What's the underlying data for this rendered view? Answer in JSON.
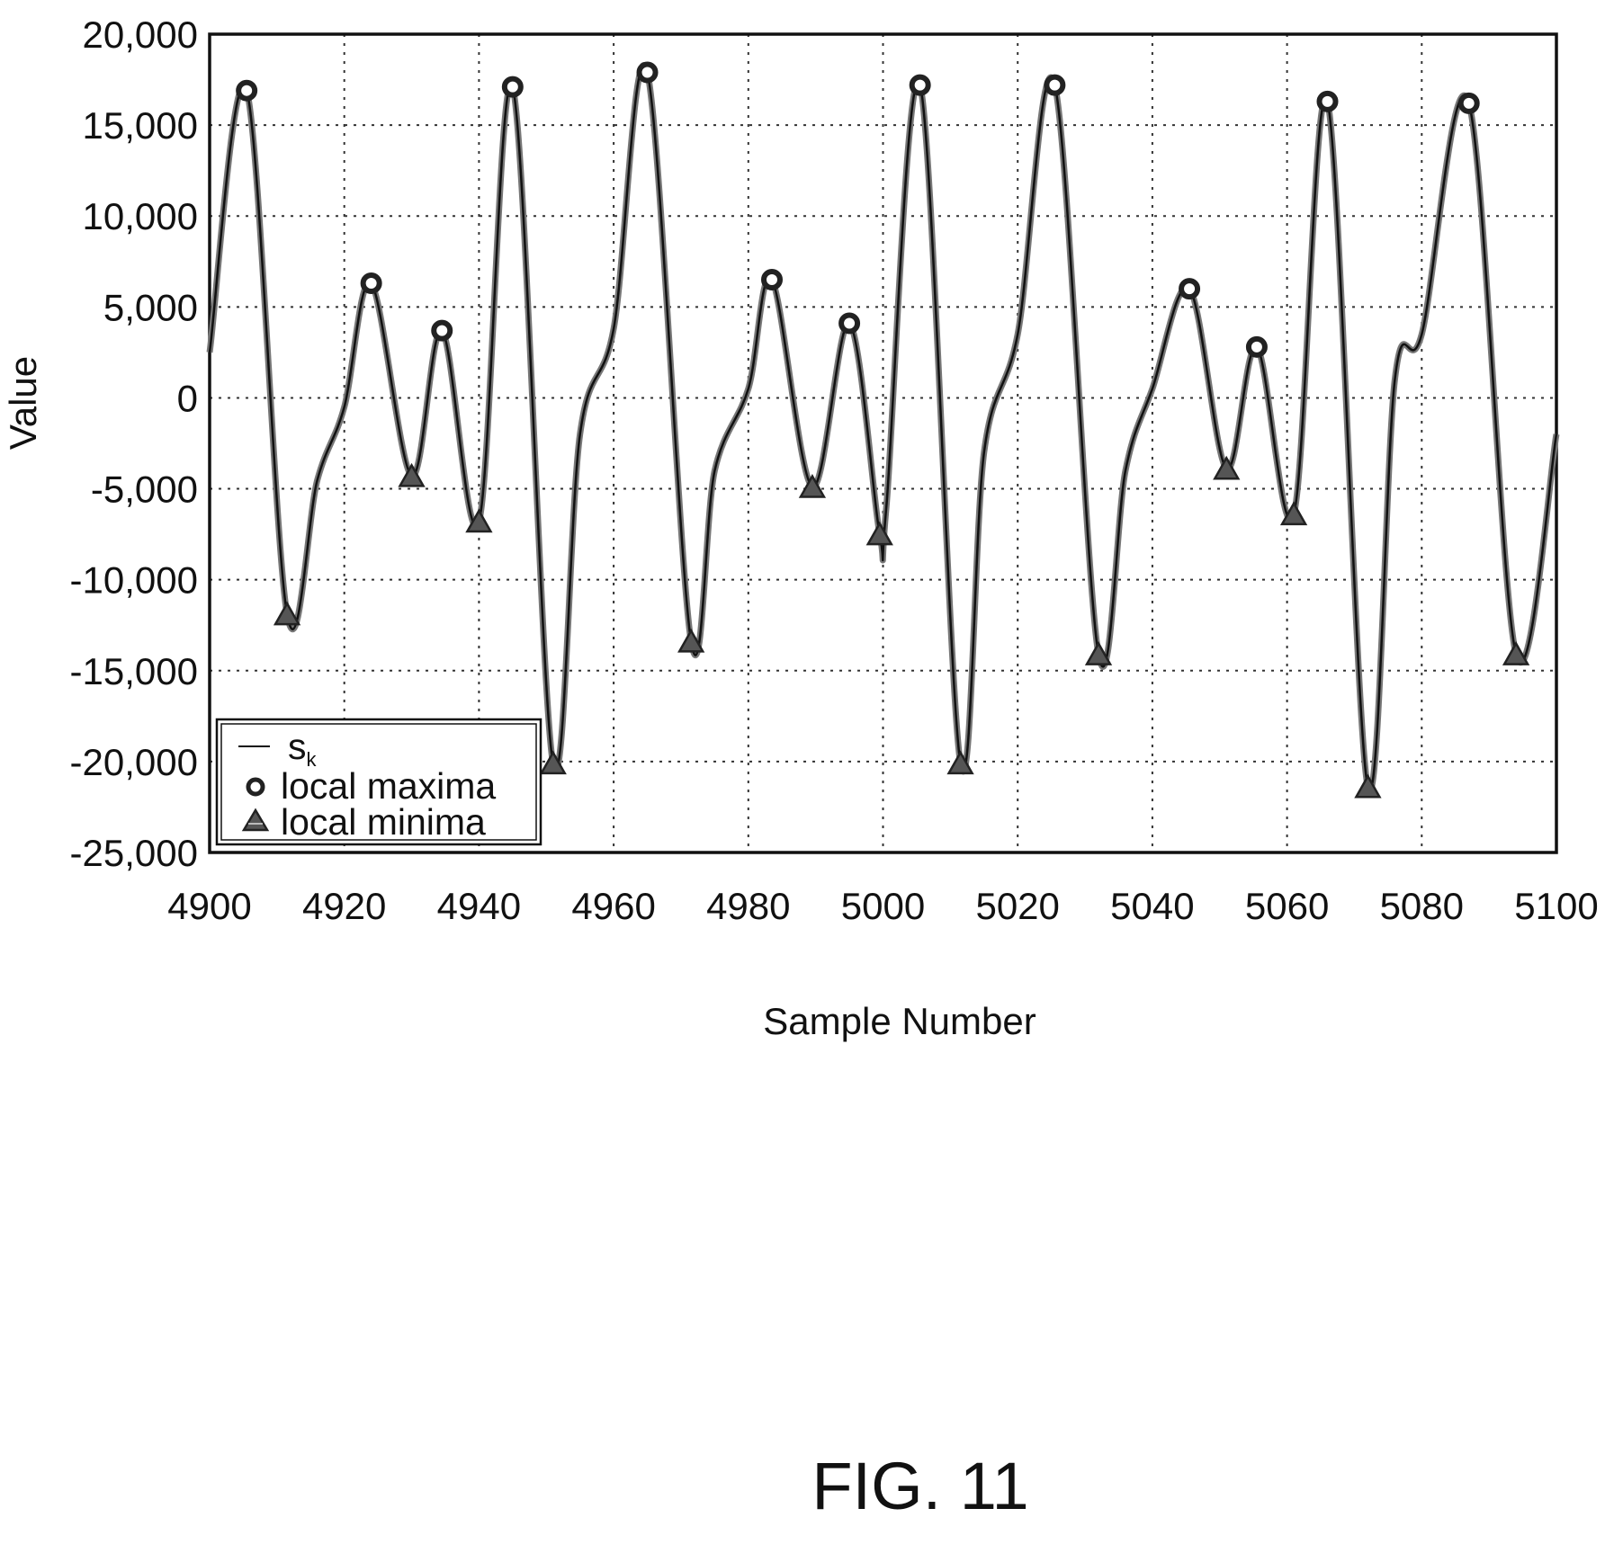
{
  "chart_data": {
    "type": "line",
    "xlabel": "Sample Number",
    "ylabel": "Value",
    "xlim": [
      4900,
      5100
    ],
    "ylim": [
      -25000,
      20000
    ],
    "x_ticks": [
      4900,
      4920,
      4940,
      4960,
      4980,
      5000,
      5020,
      5040,
      5060,
      5080,
      5100
    ],
    "y_ticks": [
      20000,
      15000,
      10000,
      5000,
      0,
      -5000,
      -10000,
      -15000,
      -20000,
      -25000
    ],
    "x_tick_labels": [
      "4900",
      "4920",
      "4940",
      "4960",
      "4980",
      "5000",
      "5020",
      "5040",
      "5060",
      "5080",
      "5100"
    ],
    "y_tick_labels": [
      "20,000",
      "15,000",
      "10,000",
      "5,000",
      "0",
      "-5,000",
      "-10,000",
      "-15,000",
      "-20,000",
      "-25,000"
    ],
    "grid": true,
    "legend_position": "bottom-left",
    "series": [
      {
        "name": "s",
        "name_subscript": "k",
        "style": "line",
        "x": [
          4900,
          4905.5,
          4911.5,
          4916,
          4920,
          4924,
          4930,
          4934.5,
          4940,
          4945,
          4951,
          4955,
          4960,
          4965,
          4971.5,
          4975,
          4980,
          4983.5,
          4989.5,
          4995,
          4999.5,
          5000.5,
          5005.5,
          5011.5,
          5015,
          5020,
          5025.5,
          5032,
          5036,
          5040,
          5045.5,
          5051,
          5055.5,
          5061,
          5066,
          5072,
          5076,
          5080,
          5087,
          5094,
          5100
        ],
        "y": [
          2500,
          16900,
          -11900,
          -4500,
          -500,
          6300,
          -4300,
          3700,
          -6800,
          17100,
          -20100,
          -2000,
          3800,
          17900,
          -13400,
          -4000,
          500,
          6500,
          -4900,
          4100,
          -7500,
          -6000,
          17200,
          -20100,
          -3000,
          3500,
          17200,
          -14100,
          -4000,
          500,
          6000,
          -3900,
          2800,
          -6400,
          16300,
          -21400,
          1000,
          3500,
          16200,
          -14100,
          -2000
        ]
      },
      {
        "name": "local maxima",
        "style": "circle-marker",
        "x": [
          4905.5,
          4924,
          4934.5,
          4945,
          4965,
          4983.5,
          4995,
          5005.5,
          5025.5,
          5045.5,
          5055.5,
          5066,
          5087
        ],
        "y": [
          16900,
          6300,
          3700,
          17100,
          17900,
          6500,
          4100,
          17200,
          17200,
          6000,
          2800,
          16300,
          16200
        ]
      },
      {
        "name": "local minima",
        "style": "triangle-marker",
        "x": [
          4911.5,
          4930,
          4940,
          4951,
          4971.5,
          4989.5,
          4999.5,
          5011.5,
          5032,
          5051,
          5061,
          5072,
          5094
        ],
        "y": [
          -11900,
          -4300,
          -6800,
          -20100,
          -13400,
          -4900,
          -7500,
          -20100,
          -14100,
          -3900,
          -6400,
          -21400,
          -14100
        ]
      }
    ]
  },
  "caption": "FIG. 11"
}
